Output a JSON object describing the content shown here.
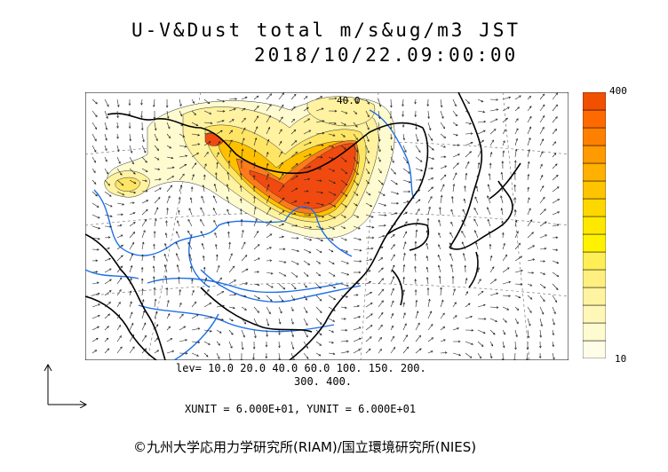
{
  "header": {
    "title_line1": "U-V&Dust total m/s&ug/m3 JST",
    "title_line2": "2018/10/22.09:00:00"
  },
  "map": {
    "contour_label": "40.0",
    "dust_colors": [
      "#fffbd0",
      "#fff2a0",
      "#ffe566",
      "#ffc000",
      "#ff7a1a",
      "#f04a10"
    ],
    "coastline_color": "#000000",
    "river_color": "#1e6fe8"
  },
  "colorbar": {
    "max_label": "400",
    "min_label": "10",
    "colors": [
      "#fffde8",
      "#fffbd0",
      "#fff7b8",
      "#fff2a0",
      "#ffef80",
      "#ffee55",
      "#fff200",
      "#ffe800",
      "#ffd700",
      "#ffc400",
      "#ffb000",
      "#ff9a00",
      "#ff8000",
      "#ff6a00",
      "#f05000"
    ]
  },
  "footer": {
    "lev_line1": "lev= 10.0 20.0 40.0 60.0 100. 150. 200.",
    "lev_line2": "300. 400.",
    "units": "XUNIT = 6.000E+01, YUNIT = 6.000E+01",
    "credit": "©九州大学応用力学研究所(RIAM)/国立環境研究所(NIES)"
  },
  "reference_vector": {
    "icon": "reference-vector-icon"
  }
}
